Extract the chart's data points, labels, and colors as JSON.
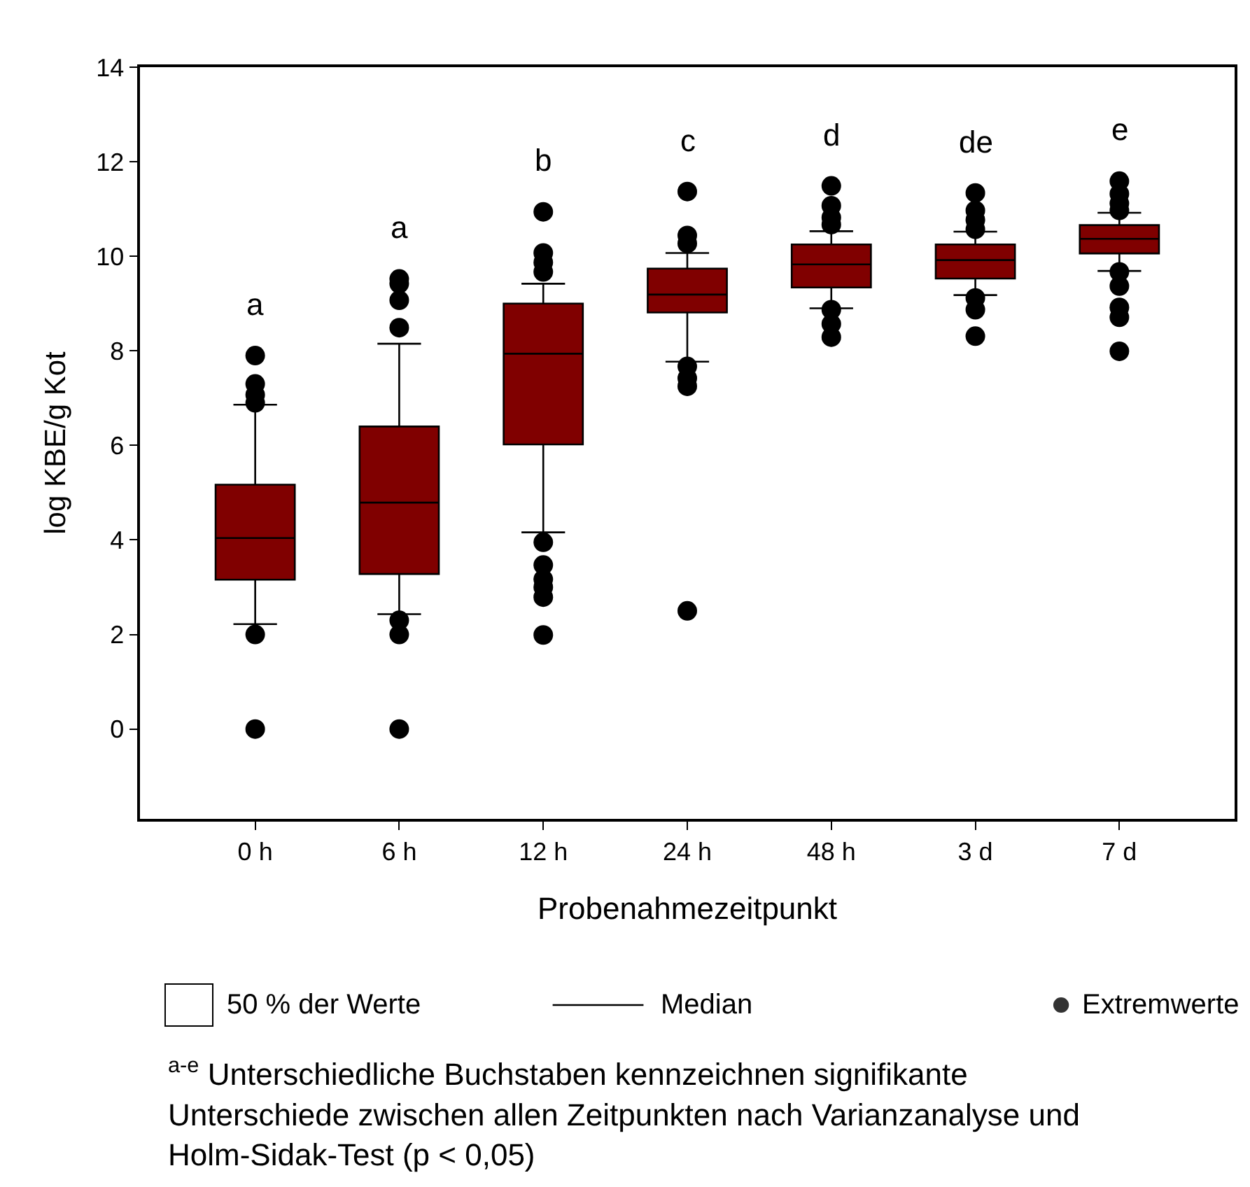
{
  "chart_data": {
    "type": "box",
    "xlabel": "Probenahmezeitpunkt",
    "ylabel": "log KBE/g Kot",
    "categories": [
      "0 h",
      "6 h",
      "12 h",
      "24 h",
      "48 h",
      "3 d",
      "7 d"
    ],
    "color": "#800000",
    "boxes": [
      {
        "low": 2.22,
        "q1": 3.16,
        "median": 4.04,
        "q3": 5.17,
        "high": 6.86,
        "outliers": [
          7.9,
          7.3,
          7.07,
          6.9,
          2.0,
          0
        ]
      },
      {
        "low": 2.43,
        "q1": 3.28,
        "median": 4.79,
        "q3": 6.4,
        "high": 8.15,
        "outliers": [
          9.52,
          9.42,
          9.07,
          8.49,
          2.3,
          2.0,
          0
        ]
      },
      {
        "low": 4.16,
        "q1": 6.02,
        "median": 7.94,
        "q3": 9.0,
        "high": 9.42,
        "outliers": [
          10.94,
          10.07,
          9.87,
          9.67,
          3.95,
          3.47,
          3.17,
          3.0,
          2.79,
          1.99
        ]
      },
      {
        "low": 7.77,
        "q1": 8.81,
        "median": 9.19,
        "q3": 9.74,
        "high": 10.07,
        "outliers": [
          11.37,
          10.44,
          10.27,
          7.67,
          7.42,
          7.25,
          2.5
        ]
      },
      {
        "low": 8.9,
        "q1": 9.34,
        "median": 9.83,
        "q3": 10.25,
        "high": 10.53,
        "outliers": [
          11.49,
          11.07,
          10.82,
          10.67,
          8.87,
          8.57,
          8.29
        ]
      },
      {
        "low": 9.18,
        "q1": 9.53,
        "median": 9.92,
        "q3": 10.25,
        "high": 10.52,
        "outliers": [
          11.34,
          10.97,
          10.77,
          10.57,
          9.12,
          8.87,
          8.31
        ]
      },
      {
        "low": 9.69,
        "q1": 10.06,
        "median": 10.37,
        "q3": 10.66,
        "high": 10.92,
        "outliers": [
          11.59,
          11.32,
          11.12,
          10.97,
          9.67,
          9.37,
          8.92,
          8.71,
          7.99
        ]
      }
    ],
    "ylim": [
      -1.9,
      14
    ],
    "yticks": [
      0,
      2,
      4,
      6,
      8,
      10,
      12,
      14
    ],
    "annotations": [
      "a",
      "a",
      "b",
      "c",
      "d",
      "de",
      "e",
      "50 % der Werte",
      "Median",
      "Extremwerte",
      "$^{a-e}$ Unterschiedliche Buchstaben kennzeichnen signifikante\nUnterschiede zwischen allen Zeitpunkten nach Varianzanalyse und\nHolm-Sidak-Test (p < 0,05)"
    ]
  }
}
